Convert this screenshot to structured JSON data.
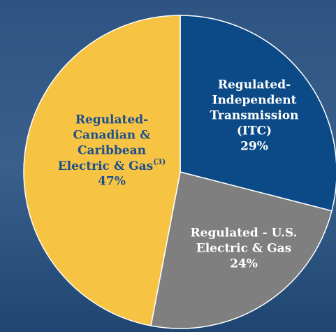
{
  "chart_data": {
    "type": "pie",
    "categories": [
      [
        "Regulated-",
        "Independent",
        "Transmission",
        "(ITC)"
      ],
      [
        "Regulated - U.S.",
        "Electric & Gas"
      ],
      [
        "Regulated-",
        "Canadian &",
        "Caribbean",
        {
          "text": "Electric & Gas",
          "sup": "(3)"
        }
      ]
    ],
    "values": [
      29,
      24,
      47
    ],
    "value_labels": [
      "29%",
      "24%",
      "47%"
    ],
    "colors": [
      "#0b4a86",
      "#7f7f7f",
      "#f6c343"
    ]
  }
}
